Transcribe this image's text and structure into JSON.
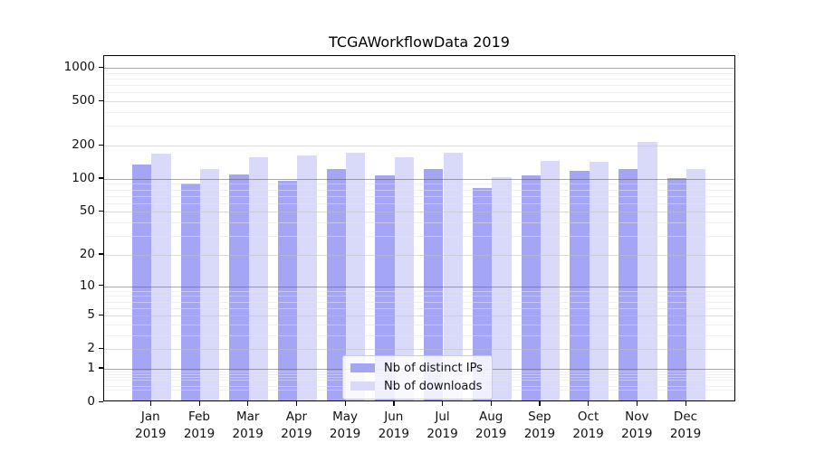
{
  "chart_data": {
    "type": "bar",
    "title": "TCGAWorkflowData 2019",
    "categories": [
      "Jan 2019",
      "Feb 2019",
      "Mar 2019",
      "Apr 2019",
      "May 2019",
      "Jun 2019",
      "Jul 2019",
      "Aug 2019",
      "Sep 2019",
      "Oct 2019",
      "Nov 2019",
      "Dec 2019"
    ],
    "series": [
      {
        "name": "Nb of distinct IPs",
        "color": "#a5a5f6",
        "values": [
          131,
          87,
          105,
          93,
          118,
          104,
          118,
          80,
          104,
          114,
          119,
          97
        ]
      },
      {
        "name": "Nb of downloads",
        "color": "#d9d9fa",
        "values": [
          164,
          119,
          150,
          158,
          167,
          150,
          165,
          100,
          140,
          138,
          206,
          119
        ]
      }
    ],
    "xlabel": "",
    "ylabel": "",
    "yscale": "log1p",
    "ylim": [
      0,
      1265
    ],
    "yticks": [
      0,
      1,
      2,
      5,
      10,
      20,
      50,
      100,
      200,
      500,
      1000
    ],
    "ytick_labels": [
      "0",
      "1",
      "2",
      "5",
      "10",
      "20",
      "50",
      "100",
      "200",
      "500",
      "1000"
    ],
    "grid": true,
    "grid_position": "above-bars",
    "legend_position": "lower center"
  },
  "colors": {
    "spine": "#000000",
    "grid_decade": "#a9a9a9",
    "grid_secondary": "#dcdcdc",
    "grid_minor": "#f0f0f0",
    "background": "#ffffff",
    "text": "#111111"
  }
}
